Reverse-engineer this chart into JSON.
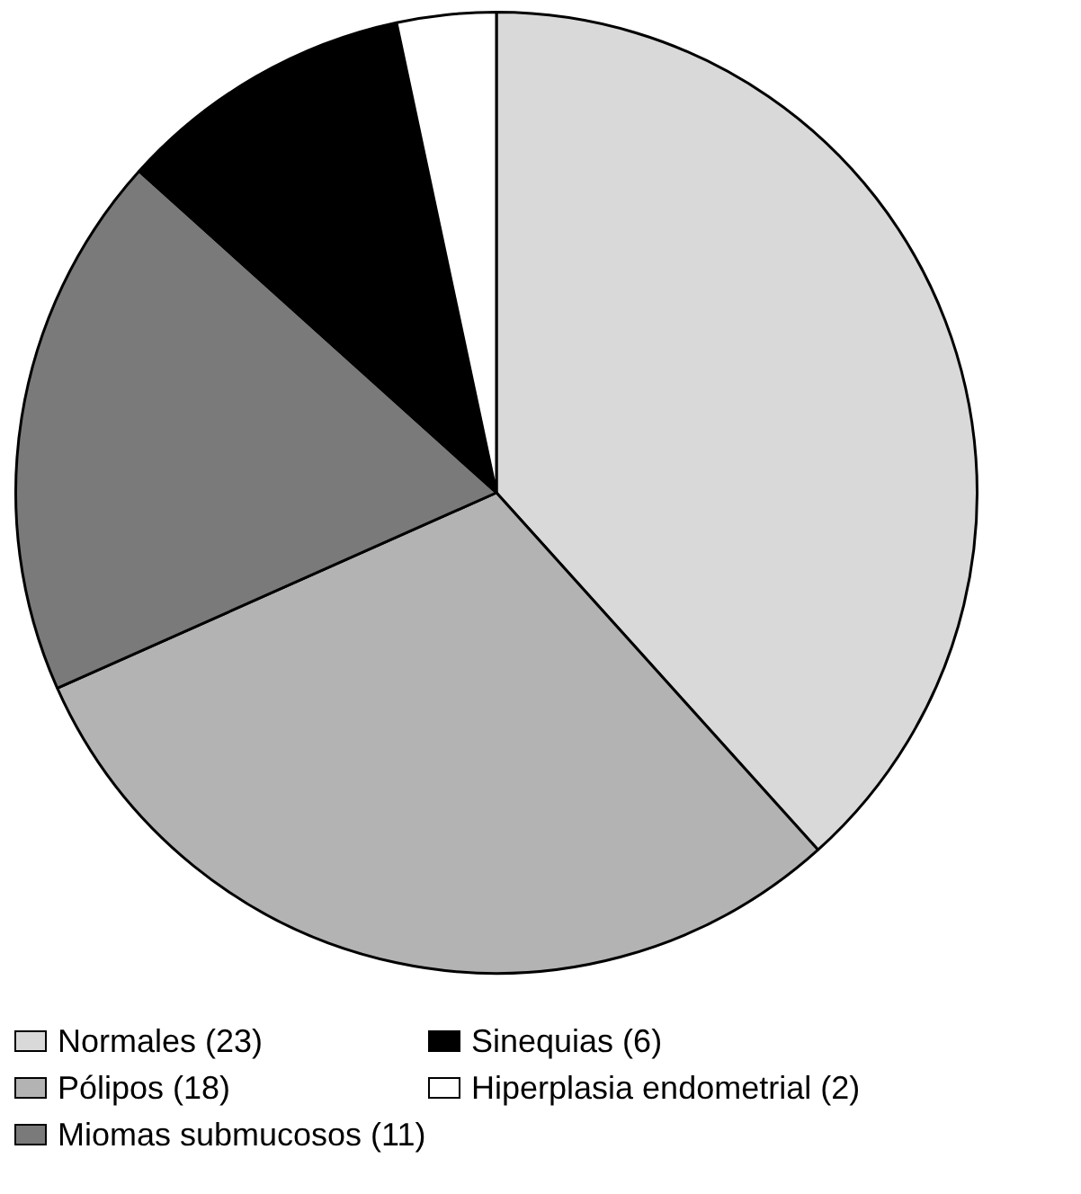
{
  "chart_data": {
    "type": "pie",
    "categories": [
      "Normales (23)",
      "Pólipos (18)",
      "Miomas submucosos (11)",
      "Sinequias (6)",
      "Hiperplasia endometrial (2)"
    ],
    "values": [
      23,
      18,
      11,
      6,
      2
    ],
    "colors": [
      "#d9d9d9",
      "#b3b3b3",
      "#7a7a7a",
      "#000000",
      "#ffffff"
    ],
    "legend": "bottom"
  }
}
